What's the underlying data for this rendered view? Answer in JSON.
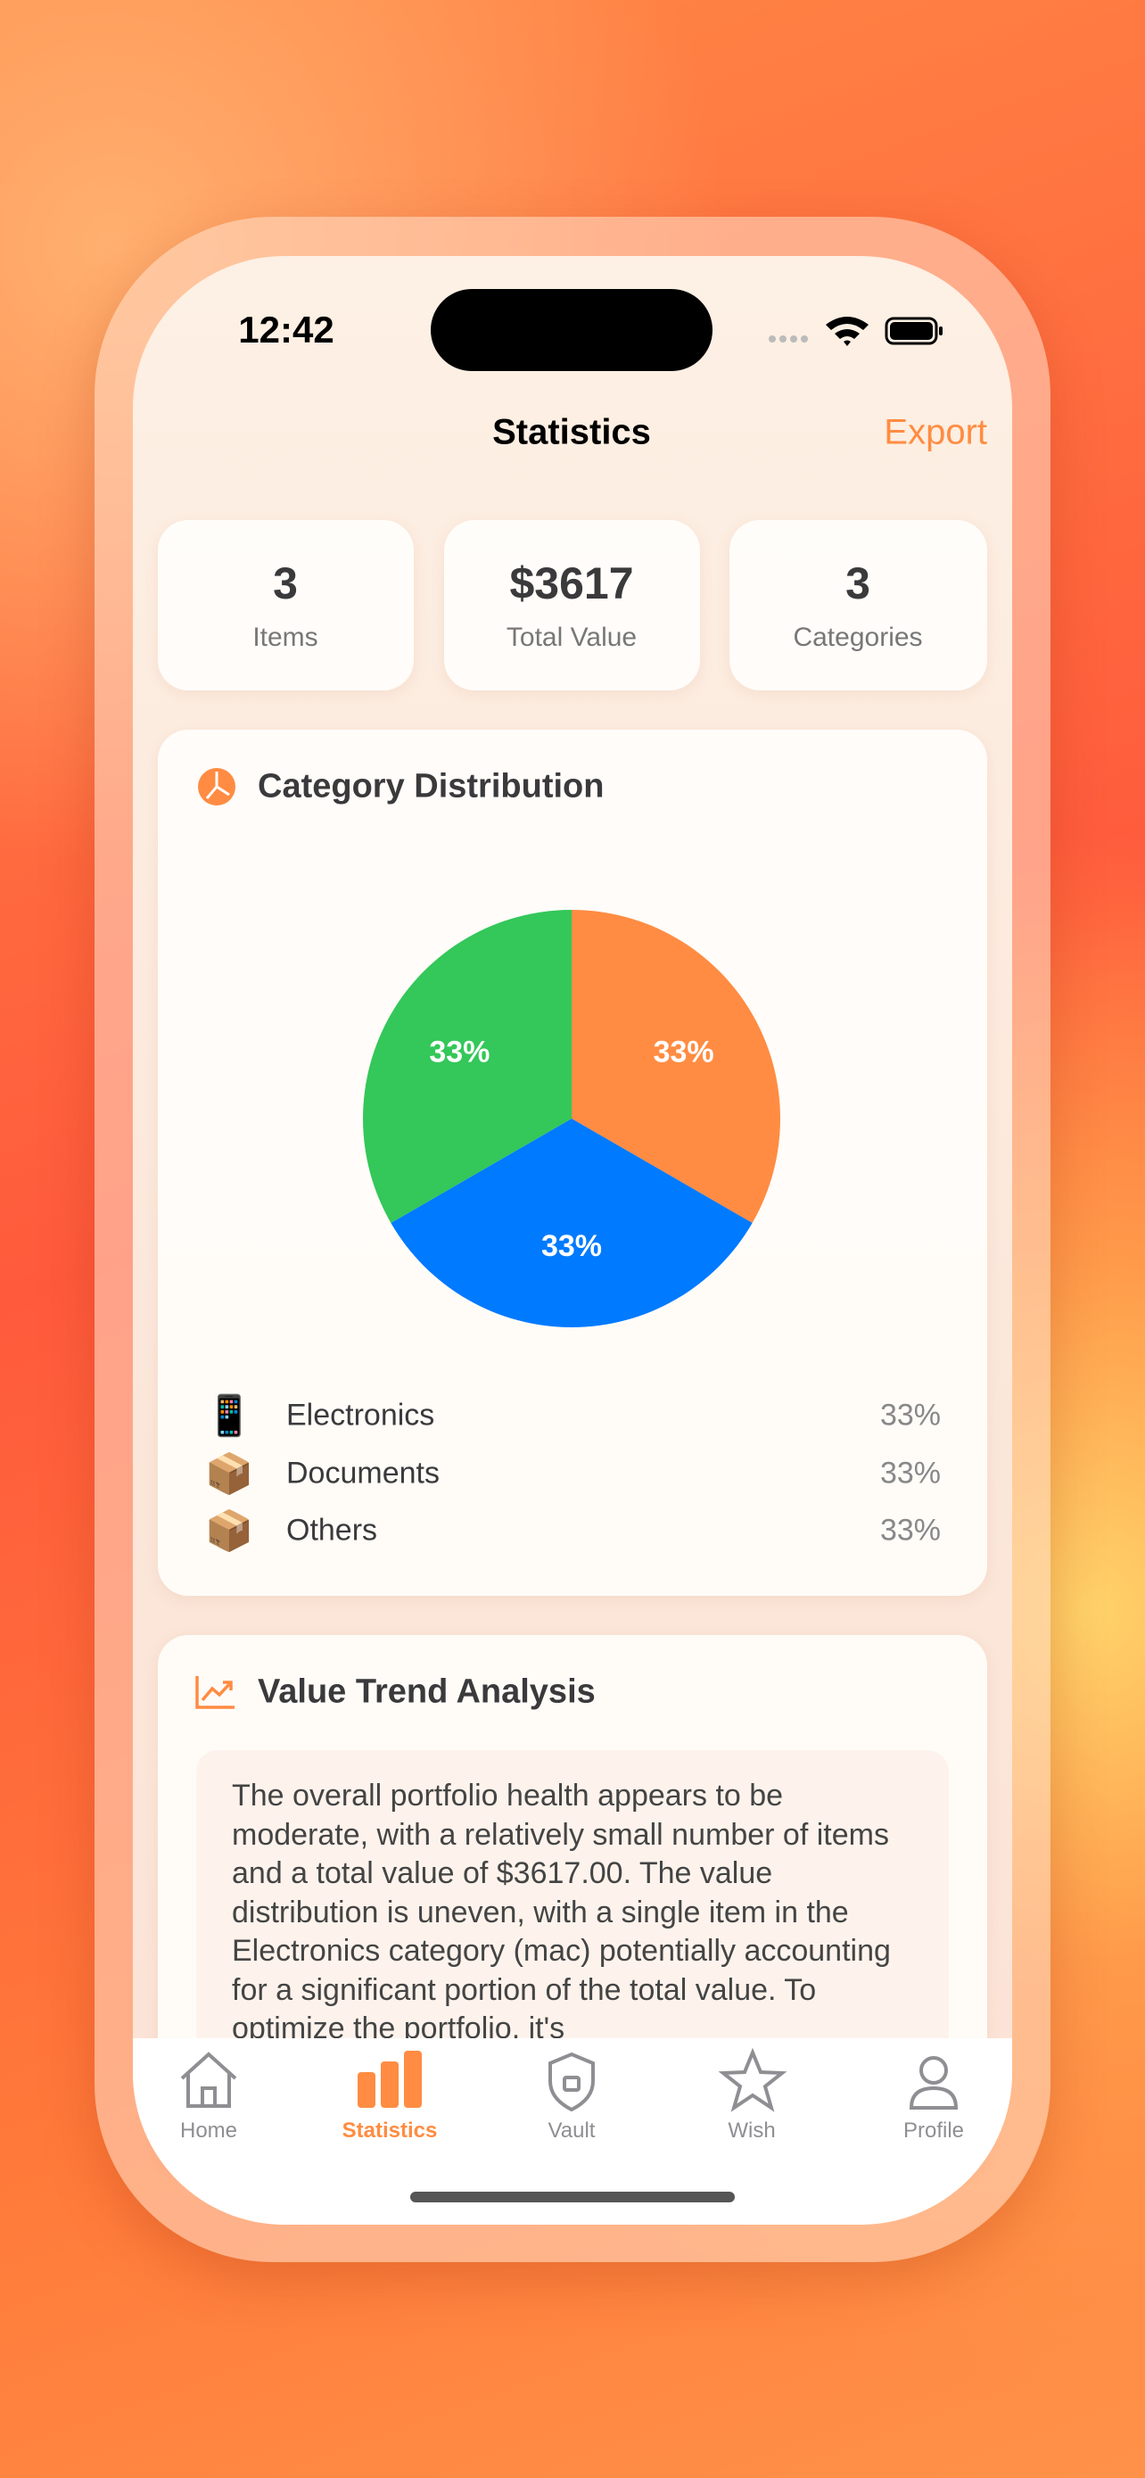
{
  "status_bar": {
    "time": "12:42"
  },
  "header": {
    "title": "Statistics",
    "action": "Export"
  },
  "stats": [
    {
      "value": "3",
      "label": "Items"
    },
    {
      "value": "$3617",
      "label": "Total Value"
    },
    {
      "value": "3",
      "label": "Categories"
    }
  ],
  "chart_data": {
    "type": "pie",
    "title": "Category Distribution",
    "categories": [
      "Electronics",
      "Documents",
      "Others"
    ],
    "icons": [
      "📱",
      "📦",
      "📦"
    ],
    "values": [
      33,
      33,
      33
    ],
    "value_labels": [
      "33%",
      "33%",
      "33%"
    ],
    "colors": [
      "#FF8C42",
      "#007AFF",
      "#34C759"
    ]
  },
  "trend": {
    "title": "Value Trend Analysis",
    "text": "The overall portfolio health appears to be moderate, with a relatively small number of items and a total value of $3617.00. The value distribution is uneven, with a single item in the Electronics category (mac) potentially accounting for a significant portion of the total value. To optimize the portfolio, it's"
  },
  "tabs": [
    "Home",
    "Statistics",
    "Vault",
    "Wish",
    "Profile"
  ]
}
